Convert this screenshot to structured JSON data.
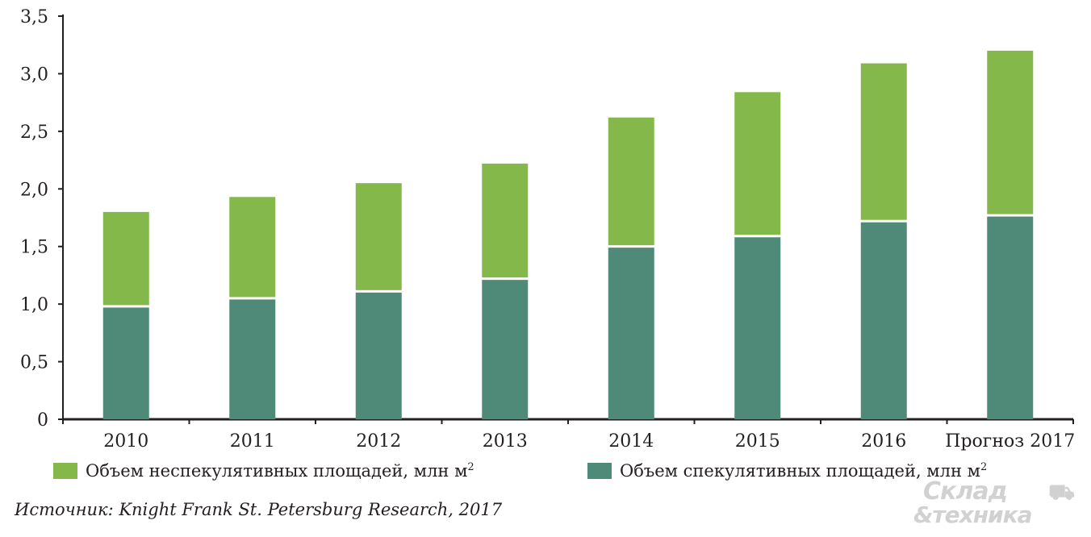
{
  "chart_data": {
    "type": "bar",
    "stacked": true,
    "categories": [
      "2010",
      "2011",
      "2012",
      "2013",
      "2014",
      "2015",
      "2016",
      "Прогноз 2017"
    ],
    "series": [
      {
        "name": "Объем спекулятивных площадей, млн м²",
        "color": "#4f8a79",
        "values": [
          0.97,
          1.04,
          1.1,
          1.21,
          1.49,
          1.58,
          1.71,
          1.76
        ]
      },
      {
        "name": "Объем неспекулятивных площадей, млн м²",
        "color": "#84b84a",
        "values": [
          0.83,
          0.89,
          0.95,
          1.01,
          1.13,
          1.26,
          1.38,
          1.44
        ]
      }
    ],
    "yticks": [
      "0",
      "0,5",
      "1,0",
      "1,5",
      "2,0",
      "2,5",
      "3,0",
      "3,5"
    ],
    "ylim": [
      0,
      3.5
    ],
    "xlabel": "",
    "ylabel": "",
    "grid": false,
    "legend_position": "bottom"
  },
  "legend": {
    "nonspec_label": "Объем неспекулятивных площадей, млн м",
    "nonspec_sup": "2",
    "spec_label": "Объем спекулятивных площадей, млн м",
    "spec_sup": "2"
  },
  "source_text": "Источник: Knight Frank St. Petersburg Research, 2017",
  "watermark": {
    "line1": "Склад",
    "line2": "&техника"
  }
}
